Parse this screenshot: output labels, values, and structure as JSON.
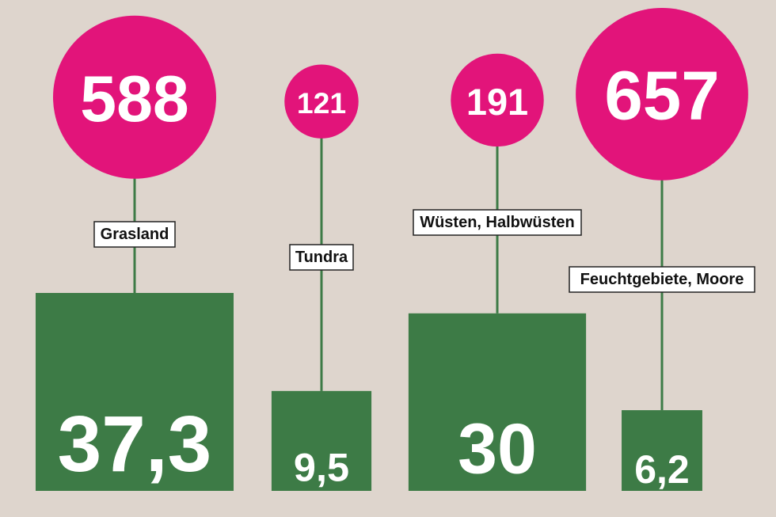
{
  "chart_data": {
    "type": "bubble-square",
    "categories": [
      "Grasland",
      "Tundra",
      "Wüsten, Halbwüsten",
      "Feuchtgebiete, Moore"
    ],
    "series": [
      {
        "values": [
          588,
          121,
          191,
          657
        ],
        "labels": [
          "588",
          "121",
          "191",
          "657"
        ],
        "color": "#e2147a",
        "shape": "circle"
      },
      {
        "values": [
          37.3,
          9.5,
          30,
          6.2
        ],
        "labels": [
          "37,3",
          "9,5",
          "30",
          "6,2"
        ],
        "color": "#3d7b46",
        "shape": "square"
      }
    ],
    "title": "",
    "xlabel": "",
    "ylabel": ""
  },
  "colors": {
    "background": "#ded5cd",
    "circle": "#e2147a",
    "square": "#3d7b46",
    "label_box": "#ffffff",
    "label_text": "#111111",
    "value_text": "#ffffff"
  }
}
